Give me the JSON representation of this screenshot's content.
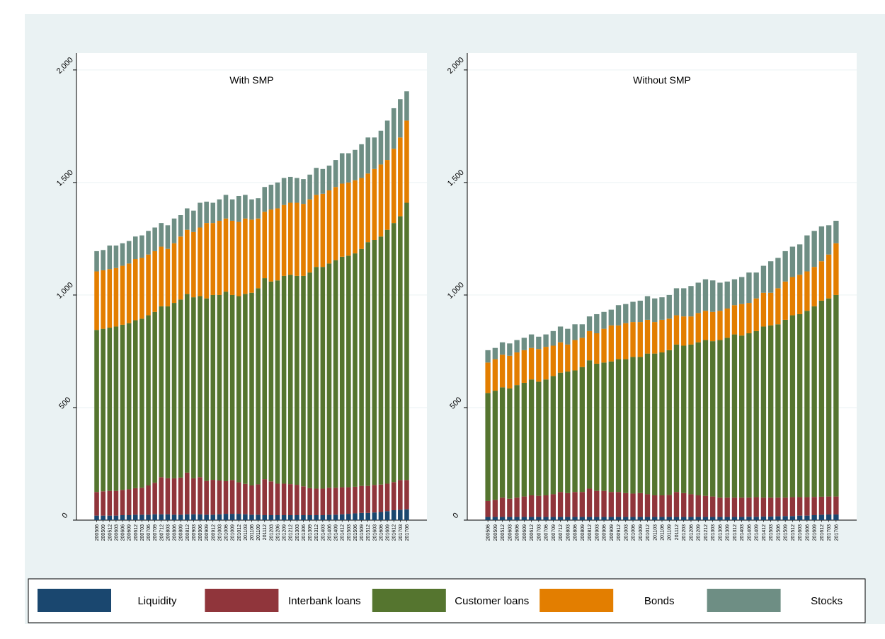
{
  "chart_data": [
    {
      "type": "bar",
      "stacked": true,
      "title": "With SMP",
      "categories": [
        "200506",
        "200509",
        "200512",
        "200603",
        "200606",
        "200609",
        "200612",
        "200703",
        "200706",
        "200709",
        "200712",
        "200803",
        "200806",
        "200809",
        "200812",
        "200903",
        "200906",
        "200909",
        "200912",
        "201003",
        "201006",
        "201009",
        "201012",
        "201103",
        "201106",
        "201109",
        "201112",
        "201203",
        "201206",
        "201209",
        "201212",
        "201303",
        "201306",
        "201309",
        "201312",
        "201403",
        "201406",
        "201409",
        "201412",
        "201503",
        "201506",
        "201509",
        "201512",
        "201603",
        "201606",
        "201609",
        "201612",
        "201703",
        "201706"
      ],
      "series": [
        {
          "name": "Liquidity",
          "color": "#1a476f",
          "values": [
            20,
            20,
            20,
            20,
            22,
            22,
            24,
            24,
            24,
            26,
            26,
            26,
            24,
            24,
            26,
            26,
            26,
            24,
            24,
            26,
            28,
            28,
            28,
            26,
            24,
            24,
            22,
            22,
            22,
            22,
            22,
            22,
            22,
            22,
            22,
            22,
            24,
            24,
            26,
            28,
            30,
            32,
            32,
            34,
            36,
            40,
            44,
            46,
            48
          ]
        },
        {
          "name": "Interbank loans",
          "color": "#90353b",
          "values": [
            105,
            108,
            110,
            110,
            112,
            115,
            118,
            120,
            130,
            140,
            165,
            160,
            162,
            165,
            185,
            160,
            165,
            150,
            155,
            150,
            145,
            150,
            140,
            135,
            130,
            135,
            160,
            150,
            140,
            140,
            138,
            135,
            128,
            120,
            118,
            118,
            120,
            120,
            120,
            118,
            118,
            120,
            120,
            122,
            122,
            122,
            125,
            132,
            130
          ]
        },
        {
          "name": "Customer loans",
          "color": "#55752f",
          "values": [
            720,
            722,
            725,
            730,
            734,
            738,
            746,
            751,
            756,
            759,
            759,
            764,
            779,
            791,
            794,
            804,
            804,
            811,
            821,
            824,
            842,
            822,
            827,
            844,
            856,
            871,
            893,
            888,
            903,
            923,
            930,
            928,
            935,
            958,
            985,
            985,
            996,
            1011,
            1024,
            1029,
            1037,
            1053,
            1083,
            1089,
            1102,
            1128,
            1151,
            1172,
            1232
          ]
        },
        {
          "name": "Bonds",
          "color": "#e37e00",
          "values": [
            260,
            260,
            260,
            260,
            262,
            265,
            272,
            270,
            270,
            270,
            265,
            255,
            265,
            280,
            285,
            290,
            305,
            335,
            320,
            330,
            325,
            330,
            330,
            335,
            325,
            310,
            295,
            320,
            320,
            315,
            320,
            325,
            320,
            325,
            320,
            325,
            325,
            325,
            325,
            325,
            325,
            315,
            305,
            315,
            320,
            310,
            330,
            350,
            365
          ]
        },
        {
          "name": "Stocks",
          "color": "#6e8e84",
          "values": [
            90,
            90,
            105,
            100,
            100,
            100,
            100,
            100,
            105,
            105,
            105,
            105,
            110,
            95,
            95,
            95,
            110,
            95,
            90,
            95,
            105,
            95,
            115,
            105,
            90,
            90,
            110,
            110,
            115,
            120,
            115,
            110,
            110,
            110,
            120,
            110,
            110,
            120,
            135,
            130,
            135,
            150,
            160,
            140,
            150,
            175,
            180,
            170,
            130
          ]
        }
      ],
      "ylim": [
        0,
        2075
      ],
      "yticks": [
        0,
        500,
        {
          "value": 1000,
          "label": "1,000"
        },
        {
          "value": 1500,
          "label": "1,500"
        },
        {
          "value": 2000,
          "label": "2,000"
        }
      ],
      "grid": true,
      "legend": "bottom"
    },
    {
      "type": "bar",
      "stacked": true,
      "title": "Without SMP",
      "categories": [
        "200506",
        "200509",
        "200512",
        "200603",
        "200606",
        "200609",
        "200612",
        "200703",
        "200706",
        "200709",
        "200712",
        "200803",
        "200806",
        "200809",
        "200812",
        "200903",
        "200906",
        "200909",
        "200912",
        "201003",
        "201006",
        "201009",
        "201012",
        "201103",
        "201106",
        "201109",
        "201112",
        "201203",
        "201206",
        "201209",
        "201212",
        "201303",
        "201306",
        "201309",
        "201312",
        "201403",
        "201406",
        "201409",
        "201412",
        "201503",
        "201506",
        "201509",
        "201512",
        "201603",
        "201606",
        "201609",
        "201612",
        "201703",
        "201706"
      ],
      "series": [
        {
          "name": "Liquidity",
          "color": "#1a476f",
          "values": [
            14,
            14,
            14,
            14,
            14,
            14,
            14,
            14,
            14,
            14,
            14,
            14,
            14,
            14,
            14,
            14,
            14,
            14,
            14,
            14,
            14,
            14,
            14,
            14,
            14,
            14,
            14,
            14,
            14,
            14,
            14,
            14,
            14,
            14,
            14,
            14,
            15,
            15,
            16,
            16,
            17,
            18,
            18,
            20,
            20,
            22,
            24,
            25,
            25
          ]
        },
        {
          "name": "Interbank loans",
          "color": "#90353b",
          "values": [
            71,
            76,
            86,
            81,
            86,
            91,
            96,
            94,
            96,
            101,
            111,
            106,
            111,
            111,
            126,
            116,
            116,
            111,
            111,
            106,
            104,
            106,
            101,
            96,
            96,
            98,
            111,
            106,
            101,
            96,
            94,
            91,
            86,
            86,
            86,
            86,
            85,
            87,
            84,
            84,
            83,
            82,
            84,
            82,
            82,
            81,
            80,
            80,
            80
          ]
        },
        {
          "name": "Customer loans",
          "color": "#55752f",
          "values": [
            480,
            485,
            490,
            490,
            500,
            505,
            515,
            507,
            515,
            525,
            530,
            540,
            540,
            555,
            570,
            565,
            570,
            580,
            590,
            595,
            607,
            605,
            625,
            630,
            635,
            643,
            655,
            655,
            665,
            680,
            692,
            690,
            700,
            710,
            725,
            720,
            730,
            738,
            760,
            765,
            770,
            790,
            808,
            813,
            828,
            847,
            871,
            880,
            895
          ]
        },
        {
          "name": "Bonds",
          "color": "#e37e00",
          "values": [
            135,
            140,
            145,
            145,
            145,
            145,
            140,
            145,
            145,
            135,
            135,
            120,
            135,
            130,
            130,
            135,
            150,
            160,
            150,
            160,
            155,
            155,
            150,
            140,
            145,
            140,
            130,
            130,
            125,
            130,
            130,
            130,
            130,
            130,
            130,
            140,
            135,
            145,
            150,
            145,
            160,
            170,
            170,
            175,
            175,
            175,
            175,
            195,
            230
          ]
        },
        {
          "name": "Stocks",
          "color": "#6e8e84",
          "values": [
            55,
            50,
            55,
            55,
            55,
            55,
            60,
            55,
            55,
            65,
            70,
            70,
            70,
            60,
            65,
            85,
            75,
            70,
            90,
            85,
            90,
            95,
            105,
            105,
            100,
            105,
            120,
            125,
            135,
            135,
            140,
            140,
            125,
            120,
            115,
            120,
            135,
            115,
            120,
            140,
            135,
            135,
            135,
            135,
            160,
            160,
            155,
            130,
            100
          ]
        }
      ],
      "ylim": [
        0,
        2075
      ],
      "yticks": [
        0,
        500,
        {
          "value": 1000,
          "label": "1,000"
        },
        {
          "value": 1500,
          "label": "1,500"
        },
        {
          "value": 2000,
          "label": "2,000"
        }
      ],
      "grid": true
    }
  ]
}
